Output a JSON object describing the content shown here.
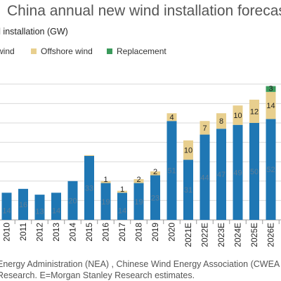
{
  "header": {
    "title": "China annual new wind installation forecast",
    "units": "d installation (GW)"
  },
  "legend": [
    {
      "label": "wind",
      "color": "#1f77b4"
    },
    {
      "label": "Offshore wind",
      "color": "#e8cf8e"
    },
    {
      "label": "Replacement",
      "color": "#3a9a5b"
    }
  ],
  "chart_data": {
    "type": "bar",
    "stacked": true,
    "categories": [
      "2010",
      "2011",
      "2012",
      "2013",
      "2014",
      "2015",
      "2016",
      "2017",
      "2018",
      "2019",
      "2020",
      "2021E",
      "2022E",
      "2023E",
      "2024E",
      "2025E",
      "2026E"
    ],
    "series": [
      {
        "name": "wind",
        "values": [
          14,
          16,
          13,
          14,
          20,
          33,
          19,
          14,
          19,
          23,
          51,
          31,
          44,
          47,
          49,
          50,
          52
        ],
        "color": "#1f77b4"
      },
      {
        "name": "Offshore wind",
        "values": [
          0,
          0,
          0,
          0,
          0,
          0.4,
          1,
          1,
          2,
          2,
          4,
          10,
          7,
          8,
          10,
          12,
          14
        ],
        "color": "#e8cf8e"
      },
      {
        "name": "Replacement",
        "values": [
          0,
          0,
          0,
          0,
          0,
          0,
          0,
          0,
          0,
          0,
          0,
          0,
          0,
          0,
          0,
          0,
          3
        ],
        "color": "#3a9a5b"
      }
    ],
    "labels": {
      "wind": [
        "14",
        "16",
        "13",
        "14",
        "20",
        "33",
        "19",
        "14",
        "19",
        "23",
        "51",
        "31",
        "44",
        "47",
        "49",
        "50",
        "52"
      ],
      "Offshore wind": [
        "",
        "",
        "",
        "",
        "",
        "",
        "1",
        "1",
        "2",
        "2",
        "4",
        "10",
        "7",
        "8",
        "10",
        "12",
        "14"
      ],
      "Replacement": [
        "",
        "",
        "",
        "",
        "",
        "",
        "",
        "",
        "",
        "",
        "",
        "",
        "",
        "",
        "",
        "",
        "3"
      ]
    },
    "ylim": [
      0,
      70
    ],
    "grid": true
  },
  "footnotes": [
    "Energy Administration (NEA) , Chinese Wind Energy Association (CWEA",
    "Research. E=Morgan Stanley Research estimates."
  ]
}
